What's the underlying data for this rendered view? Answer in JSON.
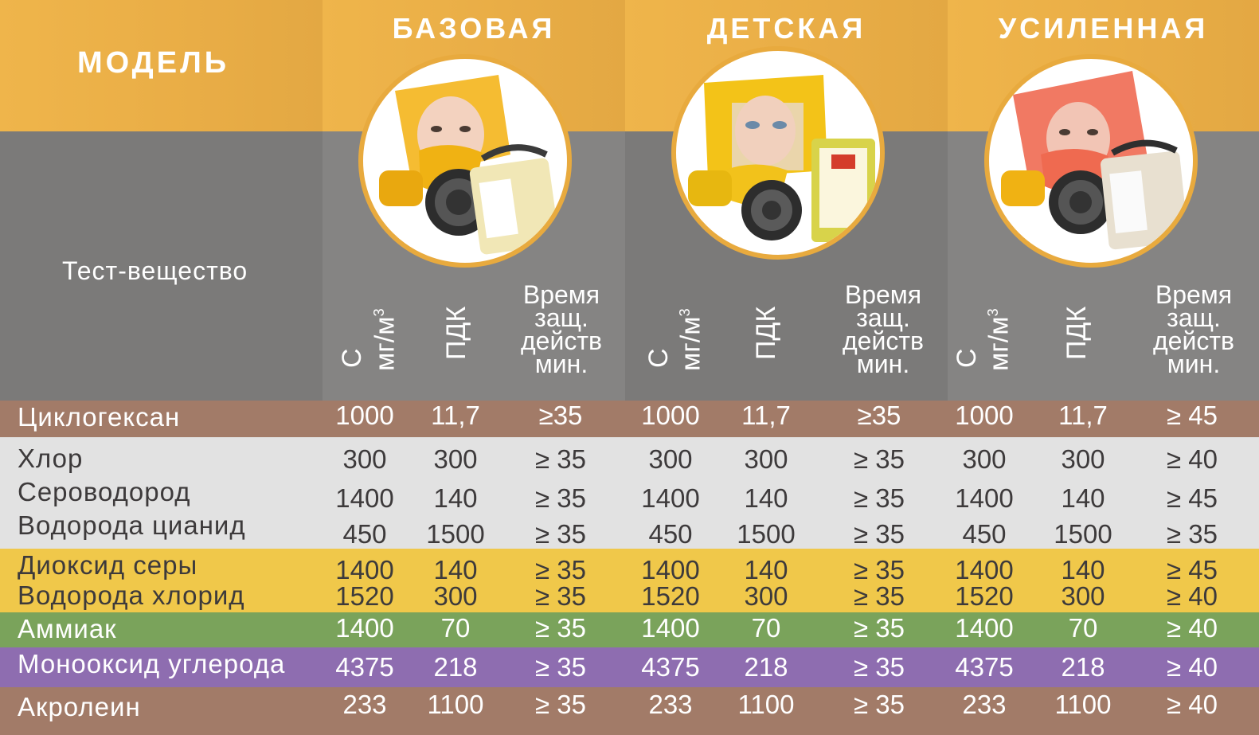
{
  "header": {
    "model_label": "МОДЕЛЬ",
    "test_substance_label": "Тест-вещество",
    "models": [
      {
        "name": "БАЗОВАЯ",
        "image": "yellow-adult-hood-icon",
        "hood_color": "#f4b51c"
      },
      {
        "name": "ДЕТСКАЯ",
        "image": "yellow-child-hood-icon",
        "hood_color": "#f3c318"
      },
      {
        "name": "УСИЛЕННАЯ",
        "image": "red-reinforced-hood-icon",
        "hood_color": "#f06a52"
      }
    ],
    "sub_columns": {
      "concentration": "С",
      "concentration_unit": "мг/м",
      "concentration_unit_sup": "3",
      "mac": "ПДК",
      "time_line1": "Время",
      "time_line2": "защ.",
      "time_line3": "действ",
      "time_line4": "мин."
    }
  },
  "colors": {
    "header_orange": "#efb54b",
    "header_gray": "#7b7a79",
    "brown": "#a27b68",
    "light_gray": "#e2e2e2",
    "yellow": "#f0c84a",
    "green": "#7aa35b",
    "purple": "#8e6db0"
  },
  "groups": [
    {
      "color": "#a27b68",
      "text_color": "#ffffff",
      "rows": [
        {
          "name": "Циклогексан",
          "values": [
            "1000",
            "11,7",
            "≥35",
            "1000",
            "11,7",
            "≥35",
            "1000",
            "11,7",
            "≥ 45"
          ]
        }
      ]
    },
    {
      "color": "#e2e2e2",
      "text_color": "#3d3a3b",
      "rows": [
        {
          "name": "Хлор",
          "values": [
            "300",
            "300",
            "≥ 35",
            "300",
            "300",
            "≥ 35",
            "300",
            "300",
            "≥ 40"
          ]
        },
        {
          "name": "Сероводород",
          "values": [
            "1400",
            "140",
            "≥ 35",
            "1400",
            "140",
            "≥ 35",
            "1400",
            "140",
            "≥ 45"
          ]
        },
        {
          "name": "Водорода цианид",
          "values": [
            "450",
            "1500",
            "≥ 35",
            "450",
            "1500",
            "≥ 35",
            "450",
            "1500",
            "≥ 35"
          ]
        }
      ]
    },
    {
      "color": "#f0c84a",
      "text_color": "#3d3a3b",
      "rows": [
        {
          "name": "Диоксид серы",
          "values": [
            "1400",
            "140",
            "≥ 35",
            "1400",
            "140",
            "≥ 35",
            "1400",
            "140",
            "≥ 45"
          ]
        },
        {
          "name": "Водорода хлорид",
          "values": [
            "1520",
            "300",
            "≥ 35",
            "1520",
            "300",
            "≥ 35",
            "1520",
            "300",
            "≥ 40"
          ]
        }
      ]
    },
    {
      "color": "#7aa35b",
      "text_color": "#ffffff",
      "rows": [
        {
          "name": "Аммиак",
          "values": [
            "1400",
            "70",
            "≥ 35",
            "1400",
            "70",
            "≥ 35",
            "1400",
            "70",
            "≥ 40"
          ]
        }
      ]
    },
    {
      "color": "#8e6db0",
      "text_color": "#ffffff",
      "rows": [
        {
          "name": "Монооксид углерода",
          "values": [
            "4375",
            "218",
            "≥ 35",
            "4375",
            "218",
            "≥ 35",
            "4375",
            "218",
            "≥ 40"
          ]
        }
      ]
    },
    {
      "color": "#a27b68",
      "text_color": "#ffffff",
      "rows": [
        {
          "name": " Акролеин",
          "values": [
            "233",
            "1100",
            "≥ 35",
            "233",
            "1100",
            "≥ 35",
            "233",
            "1100",
            "≥ 40"
          ]
        }
      ]
    }
  ]
}
